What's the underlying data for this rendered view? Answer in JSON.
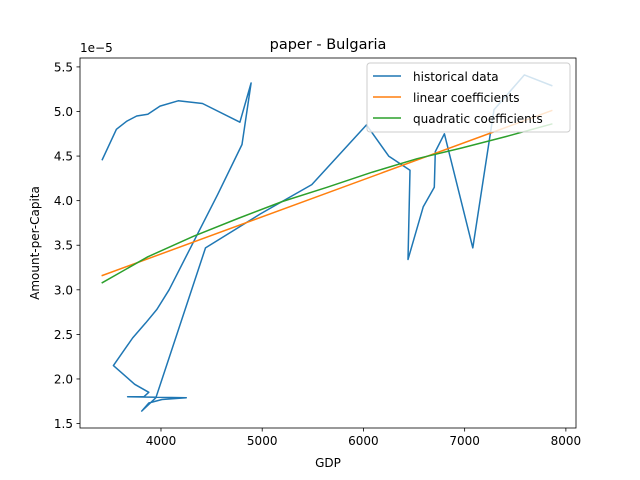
{
  "chart_data": {
    "type": "line",
    "title": "paper - Bulgaria",
    "xlabel": "GDP",
    "ylabel": "Amount-per-Capita",
    "y_offset_label": "1e−5",
    "xlim": [
      3200,
      8100
    ],
    "ylim": [
      1.45,
      5.6
    ],
    "x_ticks": [
      4000,
      5000,
      6000,
      7000,
      8000
    ],
    "x_tick_labels": [
      "4000",
      "5000",
      "6000",
      "7000",
      "8000"
    ],
    "y_ticks": [
      1.5,
      2.0,
      2.5,
      3.0,
      3.5,
      4.0,
      4.5,
      5.0,
      5.5
    ],
    "y_tick_labels": [
      "1.5",
      "2.0",
      "2.5",
      "3.0",
      "3.5",
      "4.0",
      "4.5",
      "5.0",
      "5.5"
    ],
    "grid": false,
    "legend_position": "top-right",
    "series": [
      {
        "name": "historical data",
        "color": "#1f77b4",
        "x": [
          3420,
          3560,
          3660,
          3760,
          3870,
          3990,
          4170,
          4410,
          4780,
          4890,
          4800,
          4560,
          4080,
          3960,
          3850,
          3720,
          3530,
          3740,
          3880,
          3830,
          3670,
          4250,
          4010,
          3880,
          3810,
          3950,
          4440,
          4980,
          5490,
          6030,
          6250,
          6460,
          6440,
          6590,
          6700,
          6710,
          6800,
          7080,
          7290,
          7590,
          7860
        ],
        "y": [
          4.46,
          4.8,
          4.89,
          4.95,
          4.97,
          5.06,
          5.12,
          5.09,
          4.88,
          5.32,
          4.63,
          4.07,
          3.0,
          2.78,
          2.63,
          2.46,
          2.15,
          1.94,
          1.85,
          1.8,
          1.8,
          1.79,
          1.77,
          1.73,
          1.64,
          1.79,
          3.47,
          3.85,
          4.18,
          4.85,
          4.5,
          4.34,
          3.34,
          3.93,
          4.15,
          4.55,
          4.75,
          3.47,
          5.02,
          5.41,
          5.29
        ]
      },
      {
        "name": "linear coefficients",
        "color": "#ff7f0e",
        "x": [
          3420,
          7860
        ],
        "y": [
          3.16,
          5.01
        ]
      },
      {
        "name": "quadratic coefficients",
        "color": "#2ca02c",
        "x": [
          3420,
          3870,
          4320,
          4760,
          5200,
          5640,
          6090,
          6530,
          6970,
          7410,
          7860
        ],
        "y": [
          3.08,
          3.37,
          3.6,
          3.8,
          3.99,
          4.15,
          4.32,
          4.47,
          4.59,
          4.72,
          4.86
        ]
      }
    ]
  }
}
